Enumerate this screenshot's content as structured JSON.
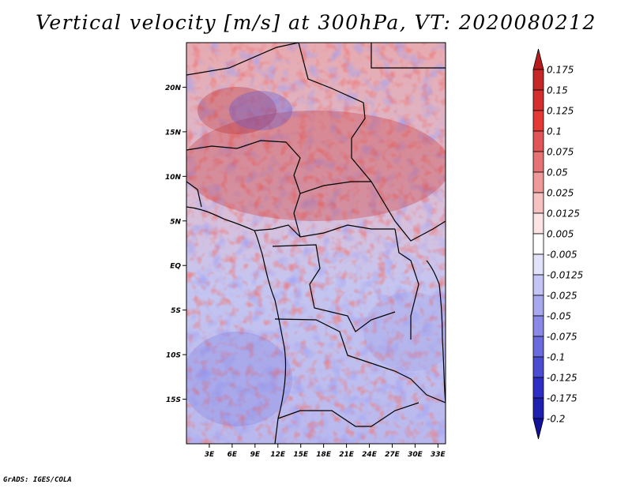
{
  "title": "Vertical velocity [m/s] at 300hPa, VT: 2020080212",
  "credit": "GrADS: IGES/COLA",
  "map": {
    "lat_labels": [
      "20N",
      "15N",
      "10N",
      "5N",
      "EQ",
      "5S",
      "10S",
      "15S"
    ],
    "lat_values": [
      20,
      15,
      10,
      5,
      0,
      -5,
      -10,
      -15
    ],
    "lon_labels": [
      "3E",
      "6E",
      "9E",
      "12E",
      "15E",
      "18E",
      "21E",
      "24E",
      "27E",
      "30E",
      "33E"
    ],
    "lon_values": [
      3,
      6,
      9,
      12,
      15,
      18,
      21,
      24,
      27,
      30,
      33
    ],
    "lon_range": [
      0,
      34
    ],
    "lat_range": [
      -20,
      25
    ]
  },
  "colorbar": {
    "labels": [
      "0.175",
      "0.15",
      "0.125",
      "0.1",
      "0.075",
      "0.05",
      "0.025",
      "0.0125",
      "0.005",
      "-0.005",
      "-0.0125",
      "-0.025",
      "-0.05",
      "-0.075",
      "-0.1",
      "-0.125",
      "-0.175",
      "-0.2"
    ],
    "colors": [
      "#b71c1c",
      "#c62828",
      "#d32f2f",
      "#e53935",
      "#e05555",
      "#e57373",
      "#ef9a9a",
      "#f6c1c1",
      "#fde4e4",
      "#ffffff",
      "#e2e2fa",
      "#c5c5f5",
      "#a8a8ee",
      "#8a8ae6",
      "#6b6bdd",
      "#4c4cd2",
      "#2e2ec4",
      "#1f1fb0",
      "#12129a"
    ]
  }
}
